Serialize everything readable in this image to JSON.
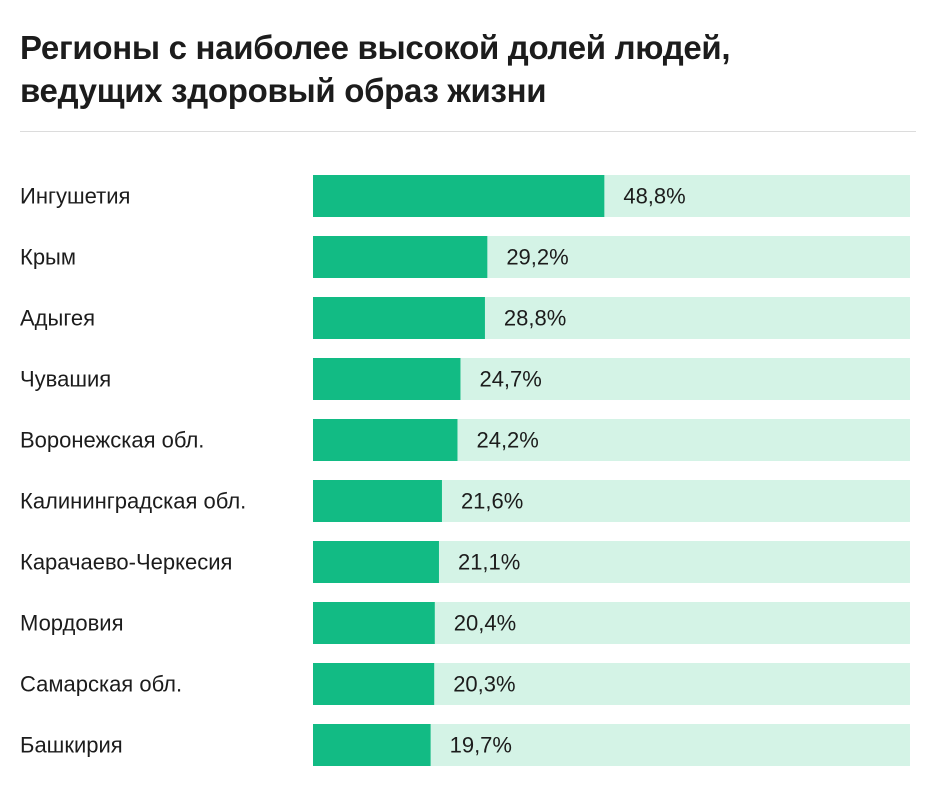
{
  "title_lines": [
    "Регионы с наиболее высокой долей людей,",
    "ведущих здоровый образ жизни"
  ],
  "colors": {
    "bar": "#12bb84",
    "track": "#d4f3e6"
  },
  "chart_data": {
    "type": "bar",
    "orientation": "horizontal",
    "title": "Регионы с наиболее высокой долей людей, ведущих здоровый образ жизни",
    "xlim": [
      0,
      100
    ],
    "categories": [
      "Ингушетия",
      "Крым",
      "Адыгея",
      "Чувашия",
      "Воронежская обл.",
      "Калининградская обл.",
      "Карачаево-Черкесия",
      "Мордовия",
      "Самарская обл.",
      "Башкирия"
    ],
    "values": [
      48.8,
      29.2,
      28.8,
      24.7,
      24.2,
      21.6,
      21.1,
      20.4,
      20.3,
      19.7
    ],
    "value_labels": [
      "48,8%",
      "29,2%",
      "28,8%",
      "24,7%",
      "24,2%",
      "21,6%",
      "21,1%",
      "20,4%",
      "20,3%",
      "19,7%"
    ],
    "grid": false,
    "legend": "none"
  }
}
